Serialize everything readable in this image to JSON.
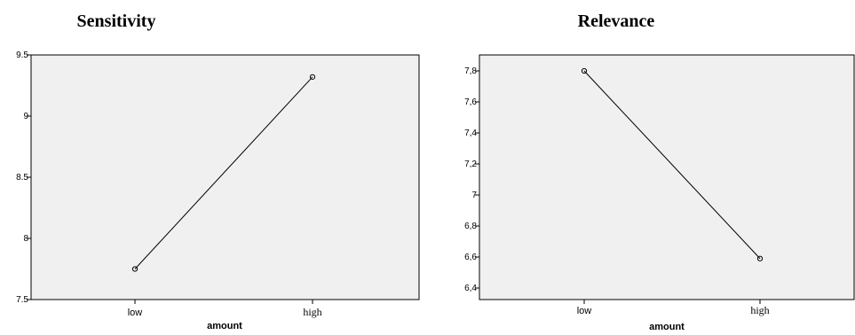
{
  "chart_data": [
    {
      "type": "line",
      "title": "Sensitivity",
      "xlabel": "amount",
      "ylabel": "",
      "categories": [
        "low",
        "high"
      ],
      "values": [
        7.75,
        9.32
      ],
      "ylim": [
        7.5,
        9.5
      ],
      "yticks": [
        "7.5",
        "8",
        "8.5",
        "9",
        "9.5"
      ],
      "ytick_values": [
        7.5,
        8,
        8.5,
        9,
        9.5
      ],
      "grid": false,
      "colors": {
        "line": "#000000",
        "plot_bg": "#f0f0f0"
      }
    },
    {
      "type": "line",
      "title": "Relevance",
      "xlabel": "amount",
      "ylabel": "",
      "categories": [
        "low",
        "high"
      ],
      "values": [
        7.8,
        6.59
      ],
      "ylim": [
        6.4,
        7.8
      ],
      "yticks": [
        "6,4",
        "6,6",
        "6,8",
        "7",
        "7,2",
        "7,4",
        "7,6",
        "7,8"
      ],
      "ytick_values": [
        6.4,
        6.6,
        6.8,
        7.0,
        7.2,
        7.4,
        7.6,
        7.8
      ],
      "grid": false,
      "colors": {
        "line": "#000000",
        "plot_bg": "#f0f0f0"
      }
    }
  ]
}
